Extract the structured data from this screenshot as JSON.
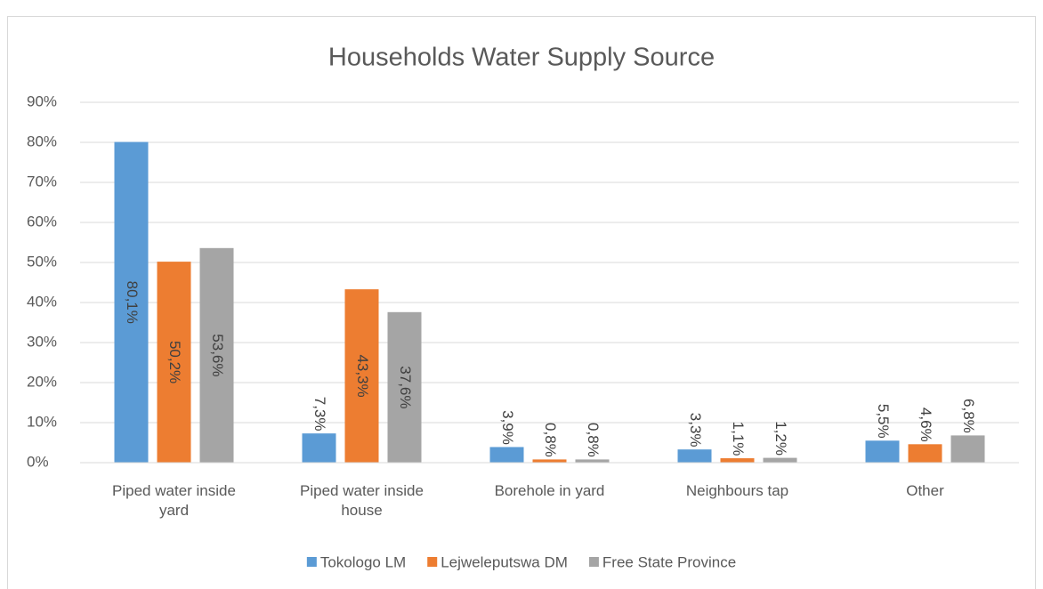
{
  "chart_data": {
    "type": "bar",
    "title": "Households Water Supply Source",
    "categories": [
      "Piped water inside yard",
      "Piped water inside house",
      "Borehole in yard",
      "Neighbours tap",
      "Other"
    ],
    "series": [
      {
        "name": "Tokologo LM",
        "color": "#5b9bd5",
        "values": [
          80.1,
          7.3,
          3.9,
          3.3,
          5.5
        ],
        "value_labels": [
          "80,1%",
          "7,3%",
          "3,9%",
          "3,3%",
          "5,5%"
        ]
      },
      {
        "name": "Lejweleputswa DM",
        "color": "#ed7d31",
        "values": [
          50.2,
          43.3,
          0.8,
          1.1,
          4.6
        ],
        "value_labels": [
          "50,2%",
          "43,3%",
          "0,8%",
          "1,1%",
          "4,6%"
        ]
      },
      {
        "name": "Free State Province",
        "color": "#a5a5a5",
        "values": [
          53.6,
          37.6,
          0.8,
          1.2,
          6.8
        ],
        "value_labels": [
          "53,6%",
          "37,6%",
          "0,8%",
          "1,2%",
          "6,8%"
        ]
      }
    ],
    "ylim": [
      0,
      90
    ],
    "yticks": [
      {
        "value": 0,
        "label": "0%"
      },
      {
        "value": 10,
        "label": "10%"
      },
      {
        "value": 20,
        "label": "20%"
      },
      {
        "value": 30,
        "label": "30%"
      },
      {
        "value": 40,
        "label": "40%"
      },
      {
        "value": 50,
        "label": "50%"
      },
      {
        "value": 60,
        "label": "60%"
      },
      {
        "value": 70,
        "label": "70%"
      },
      {
        "value": 80,
        "label": "80%"
      },
      {
        "value": 90,
        "label": "90%"
      }
    ],
    "grid": true,
    "legend": "bottom"
  }
}
